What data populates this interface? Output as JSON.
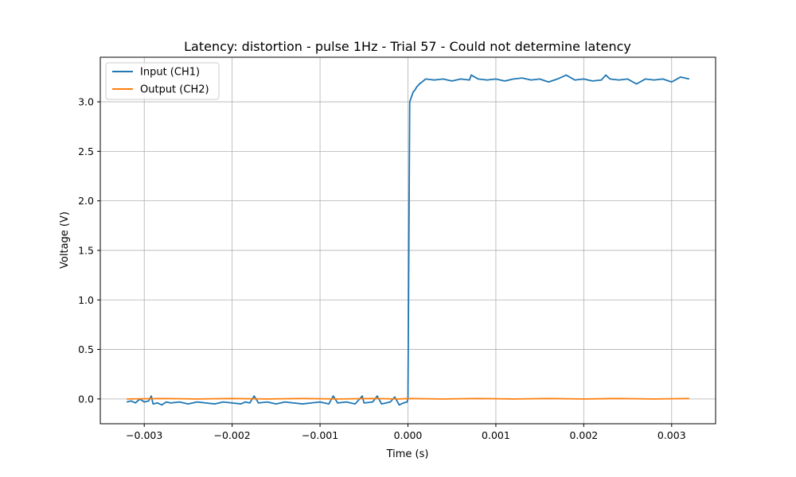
{
  "chart_data": {
    "type": "line",
    "title": "Latency: distortion - pulse 1Hz - Trial 57 - Could not determine latency",
    "xlabel": "Time (s)",
    "ylabel": "Voltage (V)",
    "xlim": [
      -0.0035,
      0.0035
    ],
    "ylim": [
      -0.25,
      3.45
    ],
    "grid": true,
    "legend_position": "top-left",
    "x_ticks": [
      -0.003,
      -0.002,
      -0.001,
      0.0,
      0.001,
      0.002,
      0.003
    ],
    "x_tick_labels": [
      "−0.003",
      "−0.002",
      "−0.001",
      "0.000",
      "0.001",
      "0.002",
      "0.003"
    ],
    "y_ticks": [
      0.0,
      0.5,
      1.0,
      1.5,
      2.0,
      2.5,
      3.0
    ],
    "y_tick_labels": [
      "0.0",
      "0.5",
      "1.0",
      "1.5",
      "2.0",
      "2.5",
      "3.0"
    ],
    "series": [
      {
        "name": "Input (CH1)",
        "color": "#1f77b4",
        "x": [
          -0.0032,
          -0.00315,
          -0.0031,
          -0.00305,
          -0.003,
          -0.00295,
          -0.00292,
          -0.0029,
          -0.00285,
          -0.0028,
          -0.00275,
          -0.0027,
          -0.0026,
          -0.0025,
          -0.0024,
          -0.0023,
          -0.0022,
          -0.0021,
          -0.002,
          -0.0019,
          -0.00185,
          -0.0018,
          -0.00175,
          -0.0017,
          -0.0016,
          -0.0015,
          -0.0014,
          -0.0013,
          -0.0012,
          -0.0011,
          -0.001,
          -0.0009,
          -0.00085,
          -0.0008,
          -0.0007,
          -0.0006,
          -0.00052,
          -0.0005,
          -0.0004,
          -0.00035,
          -0.0003,
          -0.0002,
          -0.00015,
          -0.0001,
          -5e-05,
          -1e-05,
          0.0,
          1e-05,
          2e-05,
          4e-05,
          6e-05,
          8e-05,
          0.0001,
          0.00013,
          0.00016,
          0.0002,
          0.0003,
          0.0004,
          0.0005,
          0.0006,
          0.0007,
          0.00072,
          0.0008,
          0.0009,
          0.001,
          0.0011,
          0.0012,
          0.0013,
          0.0014,
          0.0015,
          0.0016,
          0.0017,
          0.0018,
          0.0019,
          0.002,
          0.0021,
          0.0022,
          0.00225,
          0.0023,
          0.0024,
          0.0025,
          0.0026,
          0.0027,
          0.0028,
          0.0029,
          0.003,
          0.0031,
          0.0032
        ],
        "values": [
          -0.03,
          -0.02,
          -0.04,
          0.0,
          -0.03,
          -0.02,
          0.03,
          -0.05,
          -0.04,
          -0.06,
          -0.03,
          -0.04,
          -0.03,
          -0.05,
          -0.03,
          -0.04,
          -0.05,
          -0.03,
          -0.04,
          -0.05,
          -0.03,
          -0.04,
          0.03,
          -0.04,
          -0.03,
          -0.05,
          -0.03,
          -0.04,
          -0.05,
          -0.04,
          -0.03,
          -0.05,
          0.03,
          -0.04,
          -0.03,
          -0.05,
          0.03,
          -0.04,
          -0.03,
          0.03,
          -0.05,
          -0.03,
          0.02,
          -0.06,
          -0.04,
          -0.03,
          0.0,
          1.5,
          3.0,
          3.05,
          3.1,
          3.12,
          3.15,
          3.18,
          3.2,
          3.23,
          3.22,
          3.23,
          3.21,
          3.23,
          3.22,
          3.27,
          3.23,
          3.22,
          3.23,
          3.21,
          3.23,
          3.24,
          3.22,
          3.23,
          3.2,
          3.23,
          3.27,
          3.22,
          3.23,
          3.21,
          3.22,
          3.27,
          3.23,
          3.22,
          3.23,
          3.18,
          3.23,
          3.22,
          3.23,
          3.2,
          3.25,
          3.23
        ]
      },
      {
        "name": "Output (CH2)",
        "color": "#ff7f0e",
        "x": [
          -0.0032,
          -0.0028,
          -0.0024,
          -0.002,
          -0.0016,
          -0.0012,
          -0.0008,
          -0.0004,
          -0.0001,
          0.0,
          0.0004,
          0.0008,
          0.0012,
          0.0016,
          0.002,
          0.0024,
          0.0028,
          0.0032
        ],
        "values": [
          0.0,
          0.005,
          0.0,
          0.005,
          0.0,
          0.005,
          0.0,
          0.005,
          0.0,
          0.005,
          0.0,
          0.005,
          0.0,
          0.005,
          0.0,
          0.005,
          0.0,
          0.005
        ]
      }
    ]
  }
}
